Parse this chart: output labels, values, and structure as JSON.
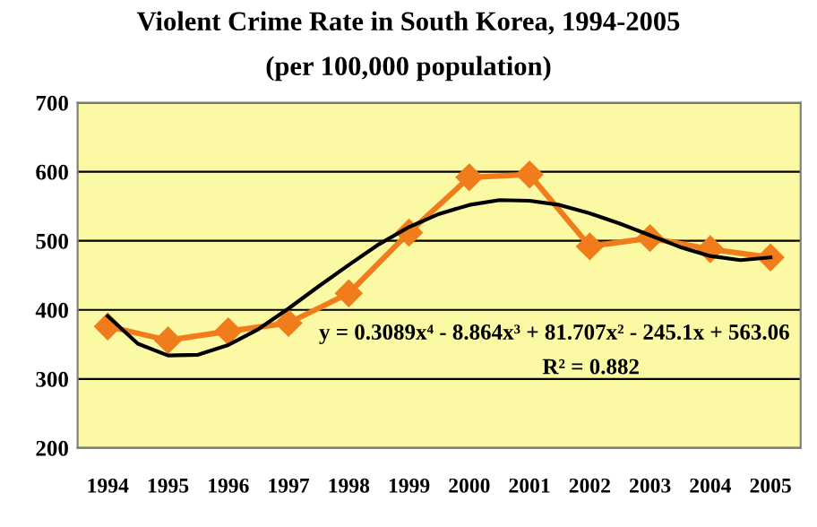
{
  "chart_data": {
    "type": "line",
    "title": "Violent Crime Rate in South Korea, 1994-2005",
    "subtitle": "(per 100,000 population)",
    "x": [
      1994,
      1995,
      1996,
      1997,
      1998,
      1999,
      2000,
      2001,
      2002,
      2003,
      2004,
      2005
    ],
    "series": [
      {
        "color": "#f07c1c",
        "marker": "diamond",
        "values": [
          376,
          356,
          369,
          381,
          424,
          512,
          592,
          596,
          492,
          504,
          488,
          476
        ]
      },
      {
        "color": "#000000",
        "marker": "none",
        "x": [
          1994,
          1994.5,
          1995,
          1995.5,
          1996,
          1996.5,
          1997,
          1997.5,
          1998,
          1998.5,
          1999,
          1999.5,
          2000,
          2000.5,
          2001,
          2001.5,
          2002,
          2002.5,
          2003,
          2003.5,
          2004,
          2004.5,
          2005
        ],
        "values": [
          391,
          351,
          334,
          335,
          349,
          372,
          402,
          434,
          465,
          495,
          520,
          539,
          552,
          559,
          558,
          552,
          540,
          525,
          508,
          491,
          478,
          472,
          476
        ]
      }
    ],
    "xlim": [
      1993.5,
      2005.5
    ],
    "xticks": [
      1994,
      1995,
      1996,
      1997,
      1998,
      1999,
      2000,
      2001,
      2002,
      2003,
      2004,
      2005
    ],
    "ylim": [
      200,
      700
    ],
    "yticks": [
      200,
      300,
      400,
      500,
      600,
      700
    ],
    "grid": "y",
    "legend": false,
    "annotations": [
      "y = 0.3089x⁴ - 8.864x³ + 81.707x² - 245.1x + 563.06",
      "R² = 0.882"
    ]
  }
}
